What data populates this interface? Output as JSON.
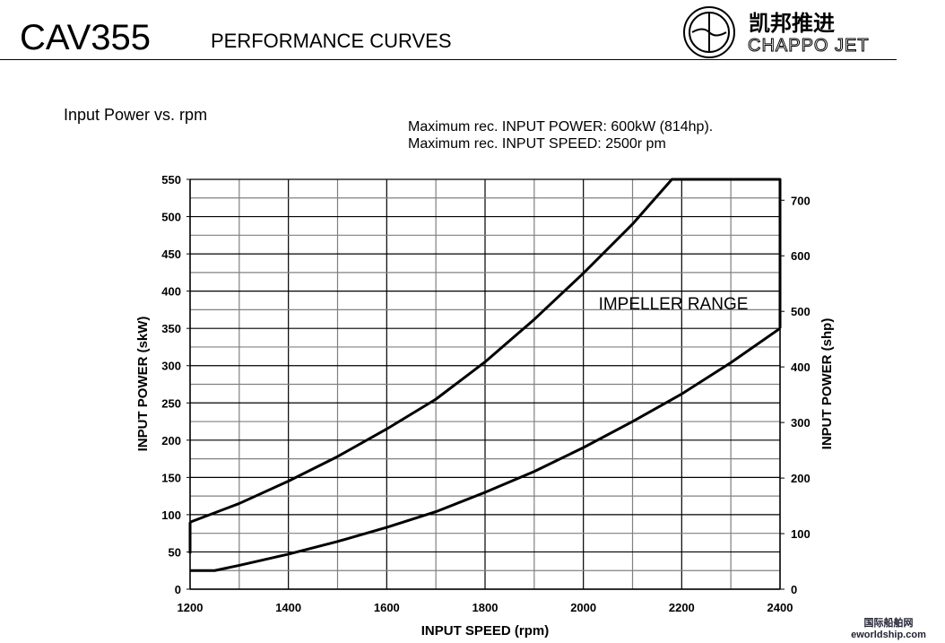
{
  "header": {
    "model": "CAV355",
    "title": "PERFORMANCE CURVES",
    "logo_cn": "凯邦推进",
    "logo_en": "CHAPPO JET"
  },
  "subtitle": "Input Power vs. rpm",
  "notes": [
    "Maximum rec. INPUT POWER: 600kW (814hp).",
    "Maximum rec. INPUT SPEED: 2500r pm"
  ],
  "watermark": "国际船舶网 eworldship.com",
  "chart_data": {
    "type": "line",
    "xlabel": "INPUT SPEED (rpm)",
    "ylabel": "INPUT POWER (skW)",
    "y2label": "INPUT POWER (shp)",
    "xlim": [
      1200,
      2400
    ],
    "ylim": [
      0,
      550
    ],
    "y2lim_hp": [
      0,
      737.6
    ],
    "xticks": [
      1200,
      1400,
      1600,
      1800,
      2000,
      2200,
      2400
    ],
    "yticks": [
      0,
      50,
      100,
      150,
      200,
      250,
      300,
      350,
      400,
      450,
      500,
      550
    ],
    "y2ticks": [
      0,
      100,
      200,
      300,
      400,
      500,
      600,
      700
    ],
    "grid": true,
    "grid_x_step": 100,
    "grid_y_step": 25,
    "annotation": "IMPELLER RANGE",
    "series": [
      {
        "x": [
          1200,
          1300,
          1400,
          1500,
          1600,
          1700,
          1800,
          1900,
          2000,
          2100,
          2180,
          2400,
          2400
        ],
        "y": [
          90,
          115,
          145,
          178,
          215,
          255,
          305,
          362,
          424,
          490,
          550,
          550,
          350
        ]
      },
      {
        "x": [
          1200,
          1250,
          1300,
          1400,
          1500,
          1600,
          1700,
          1800,
          1900,
          2000,
          2100,
          2200,
          2300,
          2400
        ],
        "y": [
          25,
          25,
          32,
          47,
          64,
          83,
          104,
          130,
          158,
          190,
          225,
          262,
          304,
          350
        ]
      },
      {
        "x": [
          1200,
          1200
        ],
        "y": [
          48,
          90
        ]
      }
    ],
    "colors": {
      "line": "#000000",
      "grid_major": "#000000",
      "grid_minor": "#808080"
    }
  }
}
